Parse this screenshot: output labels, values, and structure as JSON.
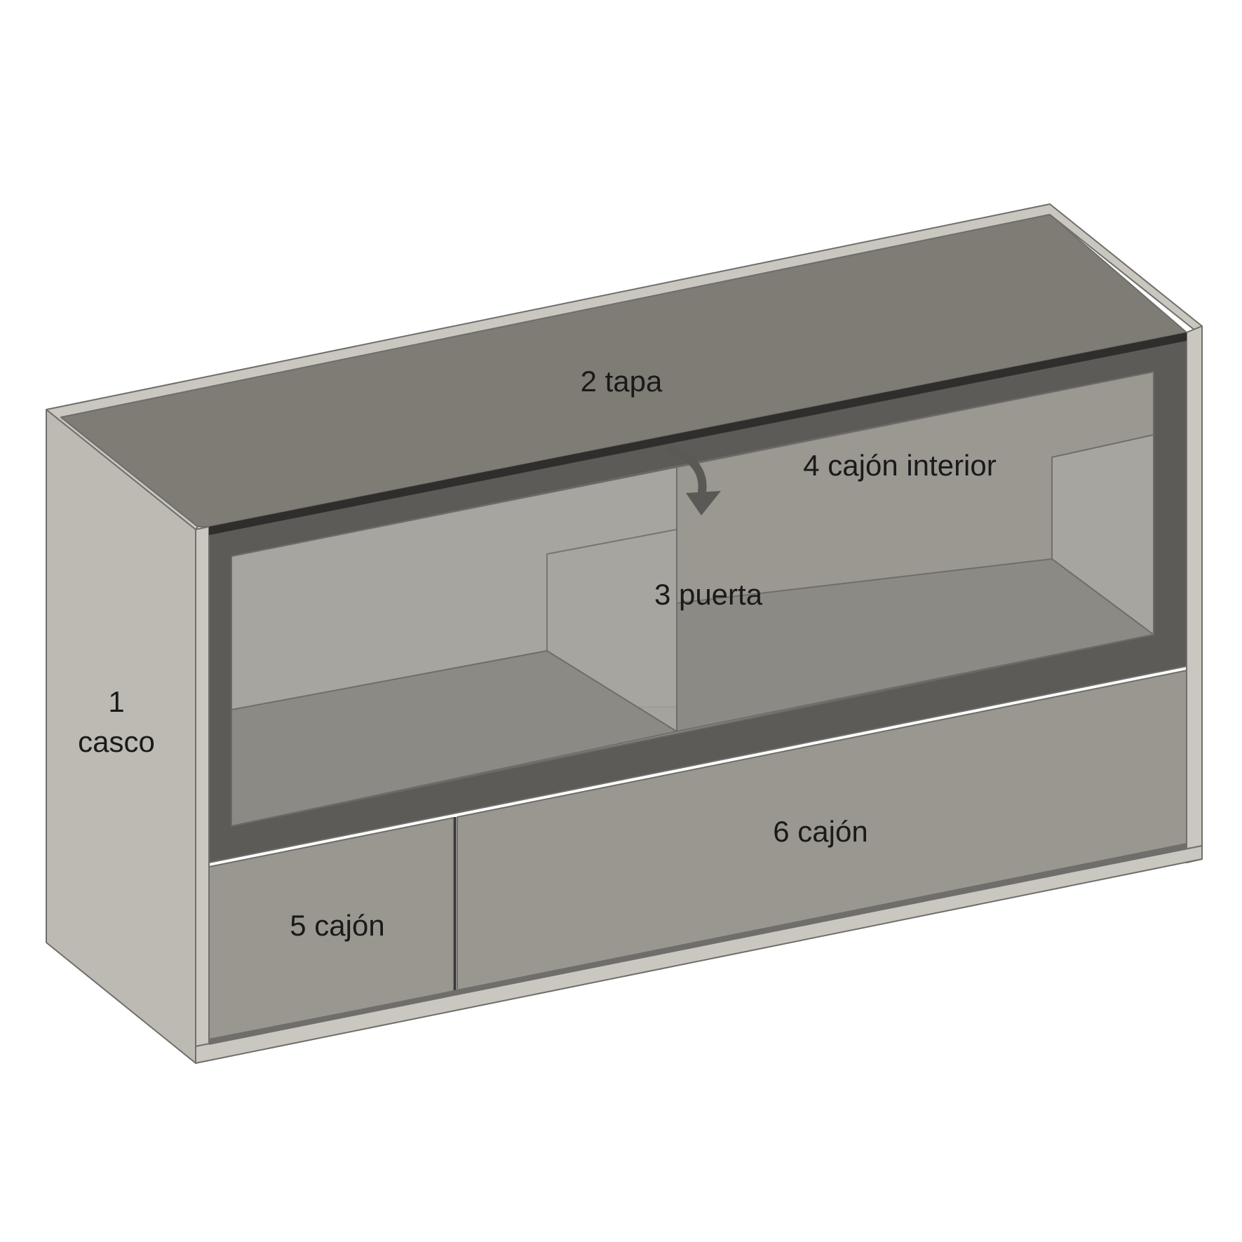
{
  "colors": {
    "background": "#ffffff",
    "casco_side": "#bcbab2",
    "casco_edge": "#c9c7bf",
    "top_panel": "#7f7c76",
    "door_frame": "#5c5b58",
    "glass": "#9a9891",
    "interior_light": "#a6a5a0",
    "interior_floor": "#8c8a84",
    "drawer_front": "#99978f",
    "arrow": "#5a5955",
    "outline": "#6f6e6a"
  },
  "labels": {
    "casco_number": "1",
    "casco_name": "casco",
    "tapa": "2 tapa",
    "puerta": "3 puerta",
    "cajon_interior": "4 cajón interior",
    "cajon_small": "5 cajón",
    "cajon_large": "6 cajón"
  },
  "icons": {
    "open_direction": "curved-arrow-down-icon"
  }
}
